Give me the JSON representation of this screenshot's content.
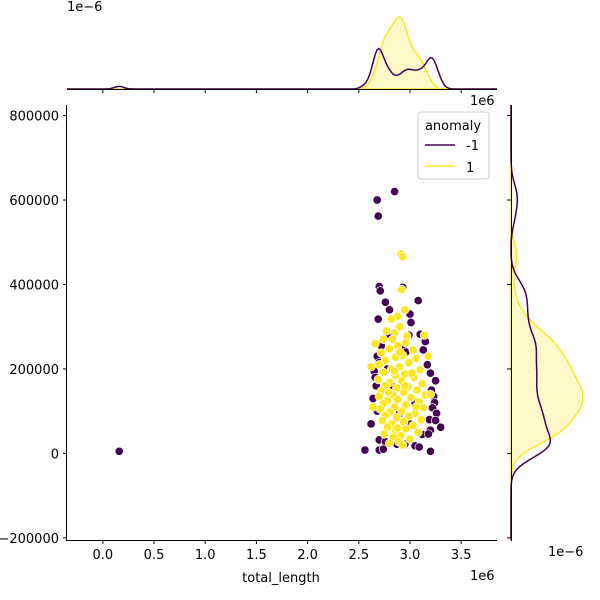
{
  "chart_data": {
    "type": "scatter",
    "subtype": "jointplot",
    "xlabel": "total_length",
    "ylabel": "",
    "x_offset_text": "1e6",
    "y_offset_text": "",
    "top_marginal_offset_text": "1e−6",
    "right_marginal_offset_text": "1e−6",
    "right_marginal_top_text": "1e6",
    "xlim": [
      -350000,
      3850000
    ],
    "ylim": [
      -205000,
      825000
    ],
    "xticks": [
      0,
      500000,
      1000000,
      1500000,
      2000000,
      2500000,
      3000000,
      3500000
    ],
    "xtick_labels": [
      "0.0",
      "0.5",
      "1.0",
      "1.5",
      "2.0",
      "2.5",
      "3.0",
      "3.5"
    ],
    "yticks": [
      -200000,
      0,
      200000,
      400000,
      600000,
      800000
    ],
    "ytick_labels": [
      "−200000",
      "0",
      "200000",
      "400000",
      "600000",
      "800000"
    ],
    "grid": false,
    "legend": {
      "title": "anomaly",
      "placement": "upper right",
      "entries": [
        {
          "label": "-1",
          "color": "#440154"
        },
        {
          "label": "1",
          "color": "#fde725"
        }
      ]
    },
    "series": [
      {
        "name": "-1",
        "color": "#440154",
        "points": [
          [
            160000,
            5000
          ],
          [
            2680000,
            600000
          ],
          [
            2850000,
            620000
          ],
          [
            2690000,
            562000
          ],
          [
            2700000,
            395000
          ],
          [
            2710000,
            385000
          ],
          [
            2930000,
            393000
          ],
          [
            2760000,
            358000
          ],
          [
            2800000,
            340000
          ],
          [
            3080000,
            362000
          ],
          [
            2690000,
            318000
          ],
          [
            3000000,
            330000
          ],
          [
            3010000,
            310000
          ],
          [
            2780000,
            282000
          ],
          [
            3100000,
            282000
          ],
          [
            2990000,
            280000
          ],
          [
            3150000,
            265000
          ],
          [
            2720000,
            255000
          ],
          [
            2930000,
            250000
          ],
          [
            3130000,
            245000
          ],
          [
            2680000,
            230000
          ],
          [
            2700000,
            215000
          ],
          [
            3170000,
            210000
          ],
          [
            2650000,
            195000
          ],
          [
            3200000,
            190000
          ],
          [
            2660000,
            180000
          ],
          [
            3250000,
            172000
          ],
          [
            2670000,
            160000
          ],
          [
            3210000,
            150000
          ],
          [
            3230000,
            135000
          ],
          [
            2640000,
            130000
          ],
          [
            3240000,
            120000
          ],
          [
            3220000,
            108000
          ],
          [
            2680000,
            100000
          ],
          [
            3260000,
            95000
          ],
          [
            3190000,
            80000
          ],
          [
            3250000,
            78000
          ],
          [
            2620000,
            70000
          ],
          [
            3300000,
            62000
          ],
          [
            3200000,
            55000
          ],
          [
            3120000,
            45000
          ],
          [
            3180000,
            46000
          ],
          [
            2700000,
            32000
          ],
          [
            2760000,
            28000
          ],
          [
            2950000,
            22000
          ],
          [
            3050000,
            18000
          ],
          [
            3090000,
            15000
          ],
          [
            2560000,
            8000
          ],
          [
            2700000,
            8000
          ],
          [
            2740000,
            10000
          ],
          [
            3200000,
            5000
          ],
          [
            2870000,
            22000
          ],
          [
            2900000,
            95000
          ],
          [
            2820000,
            160000
          ],
          [
            2960000,
            240000
          ],
          [
            3050000,
            120000
          ],
          [
            2780000,
            200000
          ],
          [
            3000000,
            70000
          ]
        ]
      },
      {
        "name": "1",
        "color": "#fde725",
        "points": [
          [
            2910000,
            472000
          ],
          [
            2930000,
            466000
          ],
          [
            2920000,
            388000
          ],
          [
            2950000,
            340000
          ],
          [
            2880000,
            325000
          ],
          [
            2820000,
            318000
          ],
          [
            2900000,
            300000
          ],
          [
            2770000,
            290000
          ],
          [
            2850000,
            285000
          ],
          [
            2970000,
            278000
          ],
          [
            2740000,
            270000
          ],
          [
            2960000,
            262000
          ],
          [
            2880000,
            255000
          ],
          [
            2800000,
            248000
          ],
          [
            3030000,
            245000
          ],
          [
            2720000,
            238000
          ],
          [
            2930000,
            232000
          ],
          [
            2860000,
            228000
          ],
          [
            3060000,
            225000
          ],
          [
            2760000,
            220000
          ],
          [
            2990000,
            215000
          ],
          [
            2700000,
            210000
          ],
          [
            2900000,
            205000
          ],
          [
            2820000,
            200000
          ],
          [
            3100000,
            198000
          ],
          [
            2740000,
            192000
          ],
          [
            2950000,
            188000
          ],
          [
            2860000,
            185000
          ],
          [
            3040000,
            180000
          ],
          [
            2690000,
            175000
          ],
          [
            2920000,
            172000
          ],
          [
            2800000,
            168000
          ],
          [
            3120000,
            165000
          ],
          [
            2760000,
            160000
          ],
          [
            2980000,
            158000
          ],
          [
            2870000,
            155000
          ],
          [
            3070000,
            150000
          ],
          [
            2720000,
            148000
          ],
          [
            2940000,
            145000
          ],
          [
            2830000,
            140000
          ],
          [
            3150000,
            138000
          ],
          [
            2700000,
            135000
          ],
          [
            3010000,
            132000
          ],
          [
            2880000,
            128000
          ],
          [
            2780000,
            125000
          ],
          [
            3090000,
            122000
          ],
          [
            2740000,
            118000
          ],
          [
            2960000,
            115000
          ],
          [
            2850000,
            110000
          ],
          [
            3130000,
            108000
          ],
          [
            2710000,
            105000
          ],
          [
            2920000,
            100000
          ],
          [
            2800000,
            98000
          ],
          [
            3050000,
            95000
          ],
          [
            2760000,
            90000
          ],
          [
            2990000,
            88000
          ],
          [
            2870000,
            85000
          ],
          [
            3110000,
            80000
          ],
          [
            2730000,
            78000
          ],
          [
            2940000,
            75000
          ],
          [
            2820000,
            70000
          ],
          [
            3030000,
            66000
          ],
          [
            2780000,
            62000
          ],
          [
            2960000,
            58000
          ],
          [
            2860000,
            54000
          ],
          [
            3080000,
            50000
          ],
          [
            2750000,
            46000
          ],
          [
            2910000,
            42000
          ],
          [
            2840000,
            38000
          ],
          [
            3000000,
            34000
          ],
          [
            2890000,
            28000
          ],
          [
            2800000,
            24000
          ],
          [
            2930000,
            20000
          ],
          [
            2620000,
            205000
          ],
          [
            2640000,
            110000
          ],
          [
            3180000,
            230000
          ],
          [
            3200000,
            140000
          ],
          [
            2660000,
            260000
          ],
          [
            3140000,
            280000
          ],
          [
            2830000,
            270000
          ],
          [
            3020000,
            190000
          ],
          [
            2900000,
            240000
          ],
          [
            2950000,
            160000
          ],
          [
            2880000,
            60000
          ],
          [
            3060000,
            110000
          ],
          [
            2790000,
            145000
          ],
          [
            2850000,
            195000
          ]
        ]
      }
    ]
  }
}
